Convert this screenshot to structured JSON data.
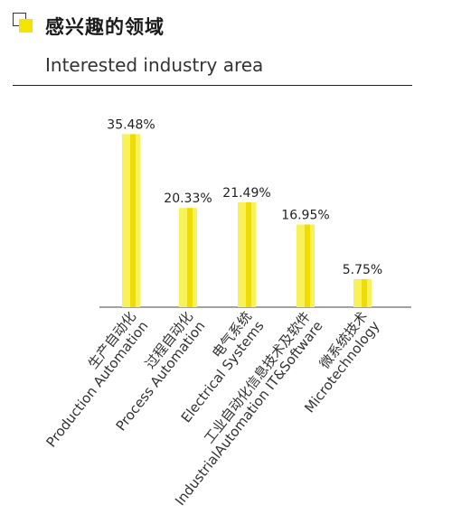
{
  "header": {
    "title_cn": "感兴趣的领域",
    "title_en": "Interested industry area",
    "icon": "yellow-square-bracket-icon",
    "accent_color": "#f5e400"
  },
  "chart_data": {
    "type": "bar",
    "categories": [
      [
        "生产自动化",
        "Production Automation"
      ],
      [
        "过程自动化",
        "Process Automation"
      ],
      [
        "电气系统",
        "Electrical Systems"
      ],
      [
        "工业自动化信息技术及软件",
        "IndustrialAutomation IT&Software"
      ],
      [
        "微系统技术",
        "Microtechnology"
      ]
    ],
    "values": [
      35.48,
      20.33,
      21.49,
      16.95,
      5.75
    ],
    "value_labels": [
      "35.48%",
      "20.33%",
      "21.49%",
      "16.95%",
      "5.75%"
    ],
    "ylim": [
      0,
      40
    ],
    "colors": {
      "bar_light": "#f7f25a",
      "bar_dark": "#f0dc00"
    },
    "legend": "none",
    "grid": false
  }
}
